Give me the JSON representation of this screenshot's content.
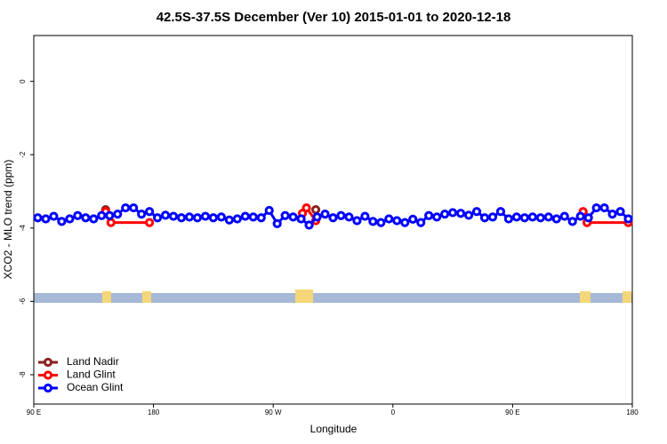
{
  "chart_data": {
    "type": "line",
    "title": "42.5S-37.5S December (Ver 10)   2015-01-01 to 2020-12-18",
    "x_label": "Longitude",
    "y_label": "XCO2 - MLO trend (ppm)",
    "xlim": [
      90,
      540
    ],
    "xticks": [
      {
        "value": 90,
        "label": "90 E"
      },
      180,
      {
        "value": 270,
        "label": "90 W"
      },
      {
        "value": 360,
        "label": "0"
      },
      {
        "value": 450,
        "label": "90 E"
      },
      {
        "value": 540,
        "label": "180"
      }
    ],
    "ylim": [
      -8.8,
      1.25
    ],
    "yticks": [
      0,
      -2,
      -4,
      -6,
      -8
    ],
    "legend": "bottom-left",
    "series": [
      {
        "name": "Land Nadir",
        "color": "#8b2020",
        "x": [
          144,
          null,
          302,
          null,
          506
        ],
        "values": [
          -3.5,
          null,
          -3.5,
          null,
          -3.85
        ]
      },
      {
        "name": "Land Glint",
        "color": "#ff0000",
        "x": [
          144,
          148,
          177,
          null,
          292,
          295,
          302,
          null,
          503,
          506,
          537
        ],
        "values": [
          -3.55,
          -3.85,
          -3.85,
          null,
          -3.6,
          -3.45,
          -3.8,
          null,
          -3.55,
          -3.85,
          -3.85
        ]
      },
      {
        "name": "Ocean Glint",
        "color": "#0000ff",
        "x": [
          93,
          99,
          105,
          111,
          117,
          123,
          129,
          135,
          141,
          147,
          153,
          159,
          165,
          171,
          177,
          183,
          189,
          195,
          201,
          207,
          213,
          219,
          225,
          231,
          237,
          243,
          249,
          255,
          261,
          267,
          273,
          279,
          285,
          291,
          297,
          303,
          309,
          315,
          321,
          327,
          333,
          339,
          345,
          351,
          357,
          363,
          369,
          375,
          381,
          387,
          393,
          399,
          405,
          411,
          417,
          423,
          429,
          435,
          441,
          447,
          453,
          459,
          465,
          471,
          477,
          483,
          489,
          495,
          501,
          507,
          513,
          519,
          525,
          531,
          537
        ],
        "values": [
          -3.72,
          -3.75,
          -3.68,
          -3.82,
          -3.75,
          -3.66,
          -3.72,
          -3.75,
          -3.66,
          -3.66,
          -3.62,
          -3.45,
          -3.45,
          -3.62,
          -3.55,
          -3.72,
          -3.65,
          -3.68,
          -3.72,
          -3.7,
          -3.72,
          -3.68,
          -3.72,
          -3.7,
          -3.78,
          -3.75,
          -3.68,
          -3.7,
          -3.72,
          -3.52,
          -3.88,
          -3.66,
          -3.7,
          -3.75,
          -3.92,
          -3.7,
          -3.62,
          -3.72,
          -3.66,
          -3.7,
          -3.8,
          -3.68,
          -3.82,
          -3.85,
          -3.75,
          -3.8,
          -3.85,
          -3.76,
          -3.85,
          -3.66,
          -3.7,
          -3.62,
          -3.58,
          -3.6,
          -3.65,
          -3.55,
          -3.72,
          -3.7,
          -3.55,
          -3.75,
          -3.7,
          -3.72,
          -3.7,
          -3.72,
          -3.7,
          -3.75,
          -3.68,
          -3.82,
          -3.68,
          -3.72,
          -3.45,
          -3.45,
          -3.62,
          -3.55,
          -3.75
        ]
      }
    ]
  }
}
